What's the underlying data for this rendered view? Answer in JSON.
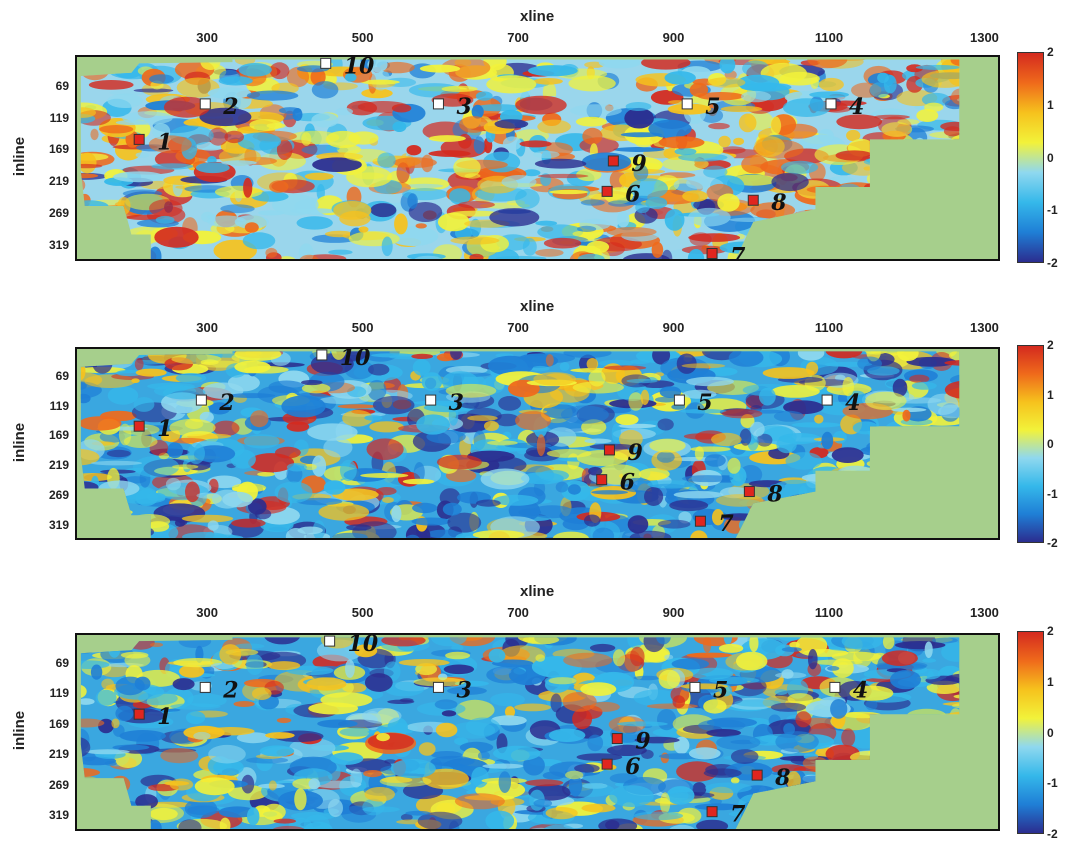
{
  "colors": {
    "background": "#a6cf8c",
    "scale": [
      "#2b2d8f",
      "#1f7fd6",
      "#35b8ea",
      "#8fd8ef",
      "#f2f23a",
      "#f6c21d",
      "#ef6a1b",
      "#d42a1f"
    ]
  },
  "chart_data": [
    {
      "type": "heatmap",
      "xlabel": "xline",
      "ylabel": "inline",
      "x_ticks": [
        "300",
        "500",
        "700",
        "900",
        "1100",
        "1300"
      ],
      "y_ticks": [
        "69",
        "119",
        "169",
        "219",
        "269",
        "319"
      ],
      "colorbar_ticks": [
        "2",
        "1",
        "0",
        "-1",
        "-2"
      ],
      "colorbar_range": [
        -2,
        2
      ],
      "markers": [
        {
          "label": "1",
          "color": "red",
          "xline": 210,
          "inline": 150
        },
        {
          "label": "2",
          "color": "white",
          "xline": 295,
          "inline": 94
        },
        {
          "label": "3",
          "color": "white",
          "xline": 595,
          "inline": 94
        },
        {
          "label": "4",
          "color": "white",
          "xline": 1100,
          "inline": 94
        },
        {
          "label": "5",
          "color": "white",
          "xline": 915,
          "inline": 94
        },
        {
          "label": "6",
          "color": "red",
          "xline": 812,
          "inline": 232
        },
        {
          "label": "7",
          "color": "red",
          "xline": 947,
          "inline": 330
        },
        {
          "label": "8",
          "color": "red",
          "xline": 1000,
          "inline": 246
        },
        {
          "label": "9",
          "color": "red",
          "xline": 820,
          "inline": 184
        },
        {
          "label": "10",
          "color": "white",
          "xline": 450,
          "inline": 30
        }
      ]
    },
    {
      "type": "heatmap",
      "xlabel": "xline",
      "ylabel": "inline",
      "x_ticks": [
        "300",
        "500",
        "700",
        "900",
        "1100",
        "1300"
      ],
      "y_ticks": [
        "69",
        "119",
        "169",
        "219",
        "269",
        "319"
      ],
      "colorbar_ticks": [
        "2",
        "1",
        "0",
        "-1",
        "-2"
      ],
      "colorbar_range": [
        -2,
        2
      ],
      "markers": [
        {
          "label": "1",
          "color": "red",
          "xline": 210,
          "inline": 150
        },
        {
          "label": "2",
          "color": "white",
          "xline": 290,
          "inline": 106
        },
        {
          "label": "3",
          "color": "white",
          "xline": 585,
          "inline": 106
        },
        {
          "label": "4",
          "color": "white",
          "xline": 1095,
          "inline": 106
        },
        {
          "label": "5",
          "color": "white",
          "xline": 905,
          "inline": 106
        },
        {
          "label": "6",
          "color": "red",
          "xline": 805,
          "inline": 240
        },
        {
          "label": "7",
          "color": "red",
          "xline": 932,
          "inline": 310
        },
        {
          "label": "8",
          "color": "red",
          "xline": 995,
          "inline": 260
        },
        {
          "label": "9",
          "color": "red",
          "xline": 815,
          "inline": 190
        },
        {
          "label": "10",
          "color": "white",
          "xline": 445,
          "inline": 30
        }
      ]
    },
    {
      "type": "heatmap",
      "xlabel": "xline",
      "ylabel": "inline",
      "x_ticks": [
        "300",
        "500",
        "700",
        "900",
        "1100",
        "1300"
      ],
      "y_ticks": [
        "69",
        "119",
        "169",
        "219",
        "269",
        "319"
      ],
      "colorbar_ticks": [
        "2",
        "1",
        "0",
        "-1",
        "-2"
      ],
      "colorbar_range": [
        -2,
        2
      ],
      "markers": [
        {
          "label": "1",
          "color": "red",
          "xline": 210,
          "inline": 150
        },
        {
          "label": "2",
          "color": "white",
          "xline": 295,
          "inline": 106
        },
        {
          "label": "3",
          "color": "white",
          "xline": 595,
          "inline": 106
        },
        {
          "label": "4",
          "color": "white",
          "xline": 1105,
          "inline": 106
        },
        {
          "label": "5",
          "color": "white",
          "xline": 925,
          "inline": 106
        },
        {
          "label": "6",
          "color": "red",
          "xline": 812,
          "inline": 232
        },
        {
          "label": "7",
          "color": "red",
          "xline": 947,
          "inline": 310
        },
        {
          "label": "8",
          "color": "red",
          "xline": 1005,
          "inline": 250
        },
        {
          "label": "9",
          "color": "red",
          "xline": 825,
          "inline": 190
        },
        {
          "label": "10",
          "color": "white",
          "xline": 455,
          "inline": 30
        }
      ]
    }
  ]
}
